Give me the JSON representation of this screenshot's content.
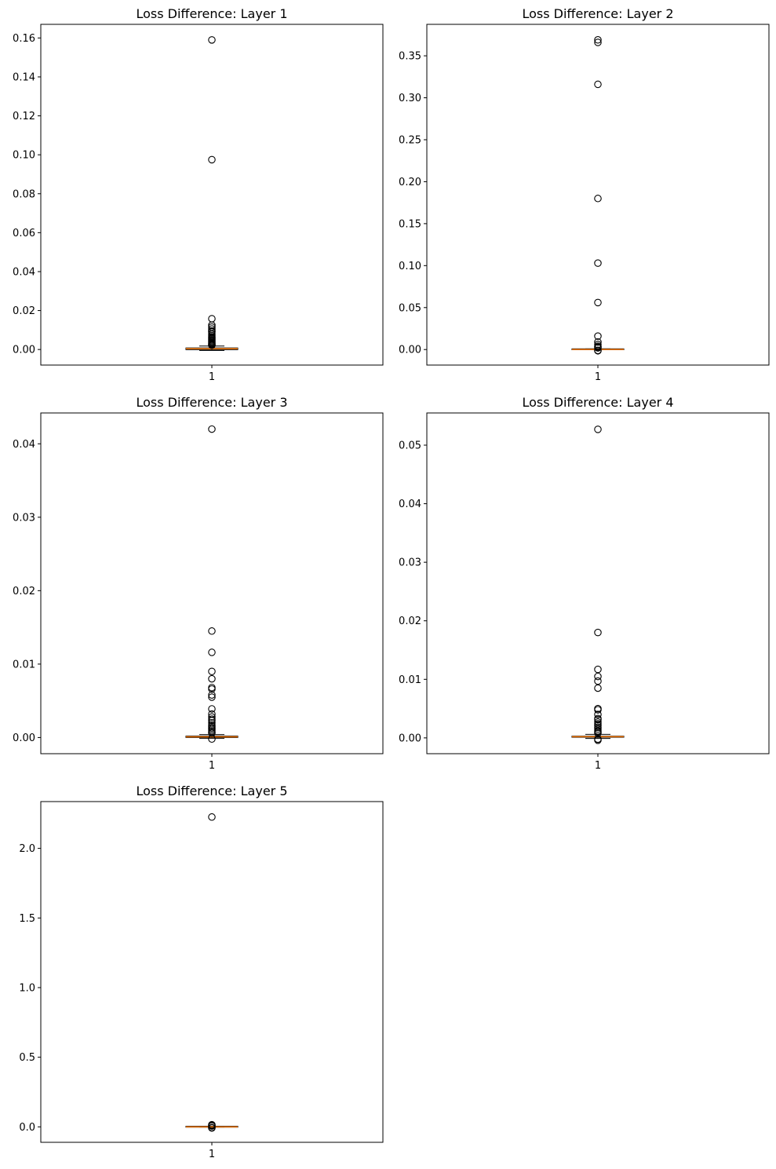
{
  "figure": {
    "background": "#ffffff",
    "box_color": "#000000",
    "median_color": "#ff7f0e",
    "flier_color": "#000000"
  },
  "chart_data": [
    {
      "type": "boxplot",
      "title": "Loss Difference: Layer 1",
      "xlabel": "",
      "ylabel": "",
      "xticks": [
        "1"
      ],
      "ylim": [
        -0.008,
        0.167
      ],
      "yticks": [
        0.0,
        0.02,
        0.04,
        0.06,
        0.08,
        0.1,
        0.12,
        0.14,
        0.16
      ],
      "ytick_labels": [
        "0.00",
        "0.02",
        "0.04",
        "0.06",
        "0.08",
        "0.10",
        "0.12",
        "0.14",
        "0.16"
      ],
      "box": {
        "whisker_low": -0.0005,
        "q1": -0.0001,
        "median": 0.0004,
        "q3": 0.0008,
        "whisker_high": 0.0018
      },
      "fliers": [
        0.159,
        0.0975,
        0.0158,
        0.0125,
        0.0115,
        0.0105,
        0.0095,
        0.009,
        0.008,
        0.0072,
        0.0065,
        0.006,
        0.0055,
        0.005,
        0.0045,
        0.004,
        0.0035,
        0.003,
        0.0027,
        0.0024,
        0.0022
      ]
    },
    {
      "type": "boxplot",
      "title": "Loss Difference: Layer 2",
      "xlabel": "",
      "ylabel": "",
      "xticks": [
        "1"
      ],
      "ylim": [
        -0.0185,
        0.3875
      ],
      "yticks": [
        0.0,
        0.05,
        0.1,
        0.15,
        0.2,
        0.25,
        0.3,
        0.35
      ],
      "ytick_labels": [
        "0.00",
        "0.05",
        "0.10",
        "0.15",
        "0.20",
        "0.25",
        "0.30",
        "0.35"
      ],
      "box": {
        "whisker_low": -0.0003,
        "q1": -0.0001,
        "median": 0.0001,
        "q3": 0.0003,
        "whisker_high": 0.0008
      },
      "fliers": [
        0.369,
        0.366,
        0.316,
        0.18,
        0.103,
        0.056,
        0.016,
        0.009,
        0.006,
        0.004,
        0.003,
        0.002,
        -0.001,
        -0.0015
      ]
    },
    {
      "type": "boxplot",
      "title": "Loss Difference: Layer 3",
      "xlabel": "",
      "ylabel": "",
      "xticks": [
        "1"
      ],
      "ylim": [
        -0.0022,
        0.0442
      ],
      "yticks": [
        0.0,
        0.01,
        0.02,
        0.03,
        0.04
      ],
      "ytick_labels": [
        "0.00",
        "0.01",
        "0.02",
        "0.03",
        "0.04"
      ],
      "box": {
        "whisker_low": -0.0001,
        "q1": 0.0,
        "median": 0.0001,
        "q3": 0.0002,
        "whisker_high": 0.0004
      },
      "fliers": [
        0.042,
        0.0145,
        0.0116,
        0.009,
        0.008,
        0.0068,
        0.0066,
        0.0058,
        0.0055,
        0.0039,
        0.0032,
        0.0028,
        0.0025,
        0.0023,
        0.002,
        0.0017,
        0.0015,
        0.0013,
        0.0011,
        0.0009,
        0.0007,
        0.0006,
        -0.0002
      ]
    },
    {
      "type": "boxplot",
      "title": "Loss Difference: Layer 4",
      "xlabel": "",
      "ylabel": "",
      "xticks": [
        "1"
      ],
      "ylim": [
        -0.0027,
        0.0555
      ],
      "yticks": [
        0.0,
        0.01,
        0.02,
        0.03,
        0.04,
        0.05
      ],
      "ytick_labels": [
        "0.00",
        "0.01",
        "0.02",
        "0.03",
        "0.04",
        "0.05"
      ],
      "box": {
        "whisker_low": -0.0001,
        "q1": 0.0001,
        "median": 0.0002,
        "q3": 0.0003,
        "whisker_high": 0.0006
      },
      "fliers": [
        0.0527,
        0.018,
        0.0117,
        0.0105,
        0.0097,
        0.0085,
        0.005,
        0.0048,
        0.004,
        0.0033,
        0.0031,
        0.0027,
        0.0024,
        0.0021,
        0.0018,
        0.0015,
        0.0012,
        0.001,
        0.0008,
        -0.0002,
        -0.0004
      ]
    },
    {
      "type": "boxplot",
      "title": "Loss Difference: Layer 5",
      "xlabel": "",
      "ylabel": "",
      "xticks": [
        "1"
      ],
      "ylim": [
        -0.111,
        2.336
      ],
      "yticks": [
        0.0,
        0.5,
        1.0,
        1.5,
        2.0
      ],
      "ytick_labels": [
        "0.0",
        "0.5",
        "1.0",
        "1.5",
        "2.0"
      ],
      "box": {
        "whisker_low": -0.002,
        "q1": -0.001,
        "median": 0.0,
        "q3": 0.001,
        "whisker_high": 0.003
      },
      "fliers": [
        2.225,
        0.015,
        0.01,
        0.006,
        -0.005,
        -0.008
      ]
    }
  ]
}
